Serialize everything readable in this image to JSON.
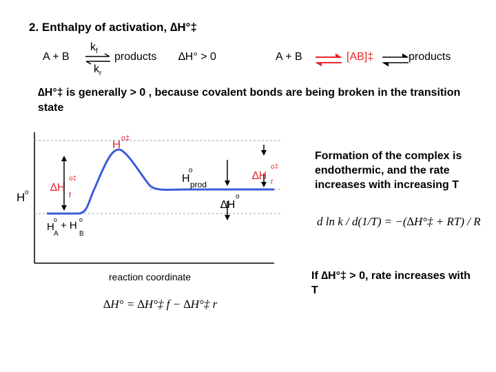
{
  "title": "2. Enthalpy of activation, ∆H°‡",
  "reaction1": {
    "left": "A + B",
    "kf": "k",
    "kf_sub": "f",
    "kr": "k",
    "kr_sub": "r",
    "right": "products"
  },
  "delta_h": "∆H° > 0",
  "reaction2": {
    "left": "A + B",
    "complex": "[AB]‡",
    "right": "products"
  },
  "statement": "∆H°‡ is generally > 0 ,  because covalent bonds are being broken in the transition state",
  "diagram": {
    "y_axis_label": "H°",
    "x_axis_label": "reaction coordinate",
    "peak_label": "H°‡",
    "forward_label": "∆H°‡ f",
    "reverse_label": "∆H°‡ r",
    "product_label": "H° prod",
    "delta_label": "∆H°",
    "reactant_label": "H°A + H°B",
    "colors": {
      "curve": "#3b5bd9",
      "accent": "#e8262b",
      "dash": "#9999cc"
    }
  },
  "side_note": "Formation of the complex is endothermic, and the rate increases with increasing T",
  "conclusion": "If ∆H°‡ > 0, rate increases with T",
  "equation_bottom": "∆H° = ∆H°‡ f − ∆H°‡ r",
  "equation_right": "d ln k / d(1/T) = −(∆H°‡ + RT) / R"
}
